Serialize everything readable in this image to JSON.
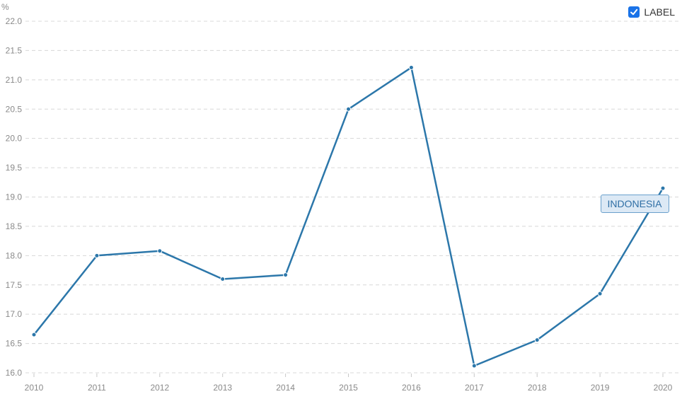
{
  "legend": {
    "label": "LABEL",
    "checked": true
  },
  "colors": {
    "line": "#2c77aa",
    "grid": "#d8d8d8",
    "axis_text": "#8a8a8a",
    "checkbox": "#1a73e8"
  },
  "chart_data": {
    "type": "line",
    "y_unit": "%",
    "x": [
      "2010",
      "2011",
      "2012",
      "2013",
      "2014",
      "2015",
      "2016",
      "2017",
      "2018",
      "2019",
      "2020"
    ],
    "series": [
      {
        "name": "INDONESIA",
        "values": [
          16.65,
          18.0,
          18.08,
          17.6,
          17.67,
          20.5,
          21.21,
          16.12,
          16.56,
          17.35,
          19.15
        ]
      }
    ],
    "ylim": [
      16.0,
      22.0
    ],
    "yticks": [
      "16.0",
      "16.5",
      "17.0",
      "17.5",
      "18.0",
      "18.5",
      "19.0",
      "19.5",
      "20.0",
      "20.5",
      "21.0",
      "21.5",
      "22.0"
    ],
    "grid": true,
    "legend_position": "top-right"
  }
}
